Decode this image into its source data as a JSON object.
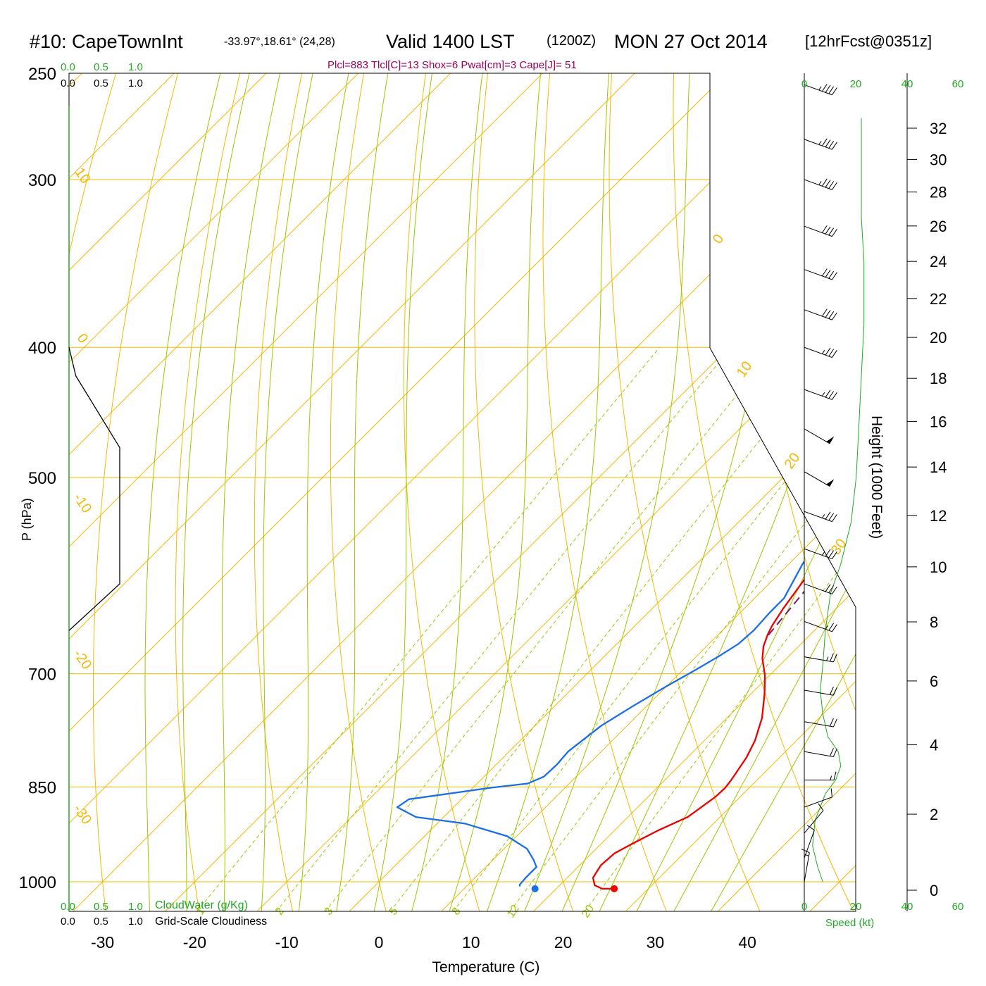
{
  "header": {
    "station": "#10: CapeTownInt",
    "coords": "-33.97°,18.61° (24,28)",
    "valid": "Valid 1400 LST",
    "zulu": "(1200Z)",
    "date": "MON 27 Oct 2014",
    "forecast": "[12hrFcst@0351z]",
    "indices": "Plcl=883 Tlcl[C]=13 Shox=6 Pwat[cm]=3 Cape[J]= 51"
  },
  "colors": {
    "temperature": "#ee0000",
    "dewpoint": "#1a6eea",
    "parcel": "#7a1a6a",
    "isotherm": "#f5b800",
    "moist_adiabat": "#9ac800",
    "mixing_ratio": "#9ac800",
    "cloud_axis": "#22aa22",
    "indices": "#a0005a"
  },
  "cloud_panel": {
    "cloudwater_ticks": [
      "0.0",
      "0.5",
      "1.0"
    ],
    "cloudiness_ticks": [
      "0.0",
      "0.5",
      "1.0"
    ],
    "cloudwater_label": "CloudWater (g/Kg)",
    "cloudiness_label": "Grid-Scale Cloudiness"
  },
  "wind_panel": {
    "speed_ticks": [
      "0",
      "20",
      "40",
      "60"
    ],
    "speed_label": "Speed (kt)"
  },
  "chart_data": {
    "type": "line",
    "title": "#10: CapeTownInt",
    "xlabel": "Temperature (C)",
    "ylabel": "P (hPa)",
    "y2label": "Height (1000 Feet)",
    "x_ticks": [
      "-30",
      "-20",
      "-10",
      "0",
      "10",
      "20",
      "30",
      "40"
    ],
    "pressure_ticks": [
      "250",
      "300",
      "400",
      "500",
      "700",
      "850",
      "1000"
    ],
    "height_ticks": [
      "0",
      "2",
      "4",
      "6",
      "8",
      "10",
      "12",
      "14",
      "16",
      "18",
      "20",
      "22",
      "24",
      "26",
      "28",
      "30",
      "32"
    ],
    "height_range_kft": [
      0,
      32
    ],
    "pressure_range_hpa": [
      250,
      1000
    ],
    "isotherm_labels": [
      {
        "text": "10"
      },
      {
        "text": "0"
      },
      {
        "text": "-10"
      },
      {
        "text": "-20"
      },
      {
        "text": "-30"
      },
      {
        "text": "0"
      },
      {
        "text": "10"
      },
      {
        "text": "20"
      },
      {
        "text": "30"
      }
    ],
    "mixing_ratio_labels": [
      "1",
      "2",
      "3",
      "5",
      "8",
      "12",
      "20"
    ],
    "series": [
      {
        "name": "Temperature",
        "points": [
          [
            26.3,
            1012
          ],
          [
            25.0,
            1012
          ],
          [
            23.8,
            1006
          ],
          [
            22.8,
            993
          ],
          [
            22.3,
            972
          ],
          [
            22.5,
            952
          ],
          [
            23.5,
            935
          ],
          [
            24.8,
            915
          ],
          [
            26.5,
            895
          ],
          [
            27.3,
            865
          ],
          [
            27.4,
            852
          ],
          [
            27.2,
            840
          ],
          [
            26.4,
            808
          ],
          [
            25.5,
            785
          ],
          [
            23.8,
            755
          ],
          [
            21.5,
            725
          ],
          [
            19.5,
            702
          ],
          [
            17.4,
            682
          ],
          [
            16.2,
            668
          ],
          [
            15.4,
            655
          ],
          [
            14.9,
            645
          ],
          [
            14.2,
            625
          ],
          [
            13.5,
            600
          ],
          [
            12.3,
            560
          ],
          [
            10.3,
            500
          ],
          [
            8.9,
            460
          ],
          [
            7.5,
            425
          ],
          [
            6.3,
            400
          ],
          [
            4.5,
            378
          ],
          [
            3.7,
            365
          ],
          [
            2.2,
            344
          ],
          [
            1.8,
            335
          ],
          [
            1.2,
            320
          ],
          [
            0.9,
            310
          ],
          [
            0.7,
            300
          ],
          [
            0.5,
            290
          ],
          [
            0.2,
            270
          ]
        ]
      },
      {
        "name": "Dewpoint",
        "points": [
          [
            15.8,
            1008
          ],
          [
            15.6,
            1005
          ],
          [
            15.5,
            992
          ],
          [
            15.5,
            975
          ],
          [
            14.4,
            963
          ],
          [
            12.5,
            945
          ],
          [
            9.0,
            925
          ],
          [
            3.0,
            905
          ],
          [
            -3.0,
            895
          ],
          [
            -6.1,
            880
          ],
          [
            -5.7,
            868
          ],
          [
            2.0,
            851
          ],
          [
            5.5,
            845
          ],
          [
            6.5,
            835
          ],
          [
            6.6,
            818
          ],
          [
            6.4,
            800
          ],
          [
            7.2,
            765
          ],
          [
            8.5,
            740
          ],
          [
            10.0,
            715
          ],
          [
            11.4,
            695
          ],
          [
            12.5,
            678
          ],
          [
            13.2,
            665
          ],
          [
            13.4,
            650
          ],
          [
            13.2,
            630
          ],
          [
            13.2,
            615
          ],
          [
            11.5,
            580
          ],
          [
            10.5,
            550
          ],
          [
            9.2,
            510
          ],
          [
            6.3,
            450
          ],
          [
            4.5,
            400
          ],
          [
            2.0,
            368
          ],
          [
            0.0,
            344
          ],
          [
            -2.0,
            328
          ],
          [
            -4.5,
            315
          ],
          [
            -7.0,
            304
          ],
          [
            -11.0,
            292
          ],
          [
            -13.5,
            281
          ],
          [
            -14.5,
            265
          ]
        ]
      },
      {
        "name": "Parcel",
        "points": [
          [
            15.5,
            655
          ],
          [
            14.7,
            610
          ],
          [
            13.8,
            565
          ],
          [
            12.5,
            520
          ],
          [
            11.5,
            490
          ],
          [
            11.0,
            470
          ]
        ]
      }
    ],
    "surface_points": {
      "temperature": 26.3,
      "dewpoint": 17.7
    },
    "cloudwater_profile_gkg": [
      [
        0.0,
        250
      ],
      [
        0.0,
        1000
      ]
    ],
    "cloudiness_profile": [
      [
        0.0,
        400
      ],
      [
        0.1,
        420
      ],
      [
        0.75,
        475
      ],
      [
        0.75,
        600
      ],
      [
        0.0,
        650
      ]
    ],
    "wind_speed_profile_kt": [
      [
        20,
        270
      ],
      [
        20,
        290
      ],
      [
        20,
        320
      ],
      [
        21,
        345
      ],
      [
        21,
        385
      ],
      [
        20,
        420
      ],
      [
        19,
        460
      ],
      [
        18,
        500
      ],
      [
        16,
        540
      ],
      [
        12,
        580
      ],
      [
        8,
        610
      ],
      [
        6,
        650
      ],
      [
        5,
        690
      ],
      [
        4,
        720
      ],
      [
        5,
        750
      ],
      [
        7,
        780
      ],
      [
        11,
        800
      ],
      [
        12,
        820
      ],
      [
        10,
        840
      ],
      [
        6,
        860
      ],
      [
        4,
        880
      ],
      [
        2,
        900
      ],
      [
        1,
        940
      ],
      [
        3,
        975
      ],
      [
        5,
        1000
      ]
    ],
    "wind_barbs": [
      {
        "p": 255,
        "dir": 290,
        "kt": 45
      },
      {
        "p": 280,
        "dir": 290,
        "kt": 45
      },
      {
        "p": 300,
        "dir": 290,
        "kt": 45
      },
      {
        "p": 325,
        "dir": 290,
        "kt": 40
      },
      {
        "p": 350,
        "dir": 290,
        "kt": 40
      },
      {
        "p": 375,
        "dir": 290,
        "kt": 40
      },
      {
        "p": 400,
        "dir": 290,
        "kt": 35
      },
      {
        "p": 430,
        "dir": 290,
        "kt": 35
      },
      {
        "p": 460,
        "dir": 300,
        "kt": 50
      },
      {
        "p": 495,
        "dir": 300,
        "kt": 50
      },
      {
        "p": 530,
        "dir": 290,
        "kt": 35
      },
      {
        "p": 565,
        "dir": 290,
        "kt": 35
      },
      {
        "p": 600,
        "dir": 290,
        "kt": 30
      },
      {
        "p": 640,
        "dir": 290,
        "kt": 25
      },
      {
        "p": 680,
        "dir": 280,
        "kt": 25
      },
      {
        "p": 720,
        "dir": 280,
        "kt": 20
      },
      {
        "p": 760,
        "dir": 280,
        "kt": 20
      },
      {
        "p": 800,
        "dir": 280,
        "kt": 20
      },
      {
        "p": 840,
        "dir": 270,
        "kt": 15
      },
      {
        "p": 880,
        "dir": 250,
        "kt": 10
      },
      {
        "p": 920,
        "dir": 220,
        "kt": 10
      },
      {
        "p": 960,
        "dir": 200,
        "kt": 10
      },
      {
        "p": 1000,
        "dir": 190,
        "kt": 15
      }
    ]
  }
}
